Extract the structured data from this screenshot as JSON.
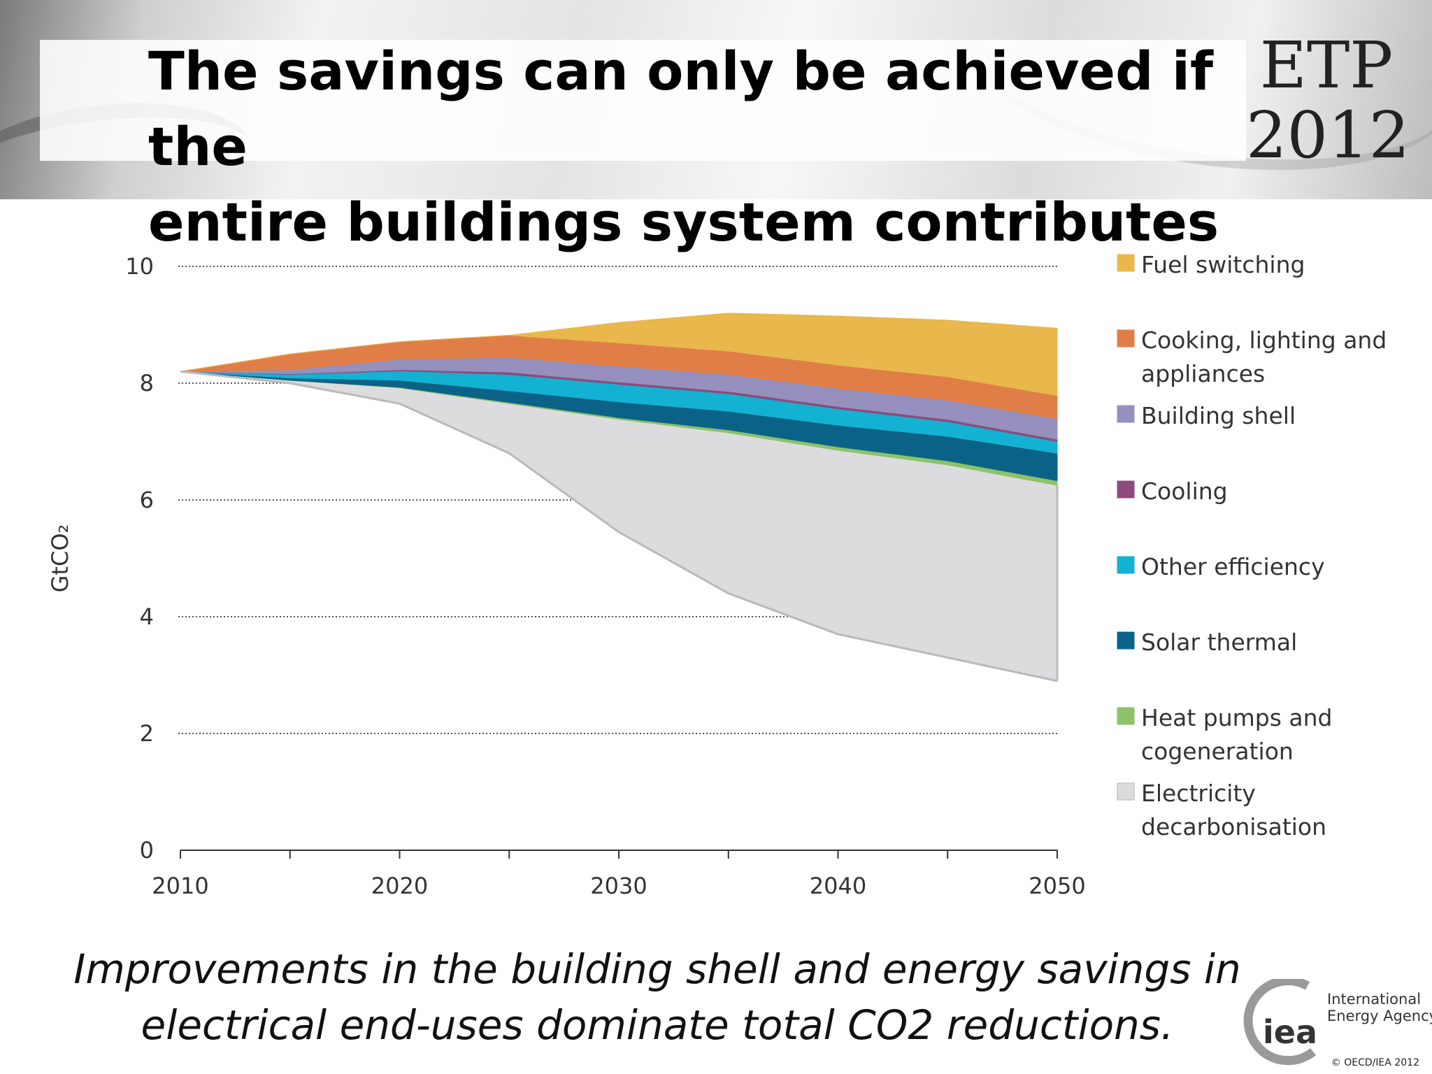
{
  "slide": {
    "title_line1": "The savings can only be achieved if the",
    "title_line2": "entire buildings system contributes",
    "badge_line1": "ETP",
    "badge_line2": "2012",
    "caption_line1": "Improvements in the building shell and energy savings in",
    "caption_line2": "electrical end-uses dominate total CO2 reductions.",
    "logo_text": "iea",
    "logo_org_line1": "International",
    "logo_org_line2": "Energy Agency",
    "copyright": "© OECD/IEA 2012"
  },
  "chart_data": {
    "type": "area",
    "ylabel": "GtCO₂",
    "xlabel": "",
    "title": "",
    "ylim": [
      0,
      10
    ],
    "xlim": [
      2010,
      2050
    ],
    "y_ticks": [
      "0",
      "2",
      "4",
      "6",
      "8",
      "10"
    ],
    "x_ticks": [
      "2010",
      "2020",
      "2030",
      "2040",
      "2050"
    ],
    "grid": true,
    "legend_position": "right",
    "x": [
      2010,
      2015,
      2020,
      2025,
      2030,
      2035,
      2040,
      2045,
      2050
    ],
    "baseline": [
      8.2,
      8.0,
      7.65,
      6.8,
      5.45,
      4.4,
      3.7,
      3.3,
      2.9
    ],
    "series": [
      {
        "name": "Electricity decarbonisation",
        "color": "#dcdcde",
        "values": [
          0.0,
          0.05,
          0.27,
          0.85,
          1.93,
          2.75,
          3.15,
          3.3,
          3.35
        ]
      },
      {
        "name": "Heat pumps and cogeneration",
        "color": "#8dc26a",
        "values": [
          0.0,
          0.0,
          0.01,
          0.02,
          0.03,
          0.05,
          0.06,
          0.07,
          0.08
        ]
      },
      {
        "name": "Solar thermal",
        "color": "#0a6387",
        "values": [
          0.0,
          0.04,
          0.12,
          0.2,
          0.27,
          0.32,
          0.37,
          0.42,
          0.47
        ]
      },
      {
        "name": "Other efficiency",
        "color": "#13b2d3",
        "values": [
          0.0,
          0.06,
          0.16,
          0.28,
          0.3,
          0.3,
          0.28,
          0.25,
          0.2
        ]
      },
      {
        "name": "Cooling",
        "color": "#8e4a7a",
        "values": [
          0.0,
          0.01,
          0.02,
          0.04,
          0.04,
          0.04,
          0.04,
          0.04,
          0.04
        ]
      },
      {
        "name": "Building shell",
        "color": "#9590bd",
        "values": [
          0.0,
          0.07,
          0.18,
          0.25,
          0.27,
          0.29,
          0.31,
          0.33,
          0.35
        ]
      },
      {
        "name": "Cooking, lighting and appliances",
        "color": "#e17e47",
        "values": [
          0.0,
          0.27,
          0.3,
          0.38,
          0.4,
          0.4,
          0.4,
          0.4,
          0.4
        ]
      },
      {
        "name": "Fuel switching",
        "color": "#e8b84d",
        "values": [
          0.0,
          0.0,
          0.0,
          0.0,
          0.35,
          0.65,
          0.84,
          0.97,
          1.15
        ]
      }
    ],
    "legend_order": [
      {
        "label": [
          "Fuel switching"
        ],
        "color": "#e8b84d"
      },
      {
        "label": [
          "Cooking, lighting and",
          "appliances"
        ],
        "color": "#e17e47"
      },
      {
        "label": [
          "Building shell"
        ],
        "color": "#9590bd"
      },
      {
        "label": [
          "Cooling"
        ],
        "color": "#8e4a7a"
      },
      {
        "label": [
          "Other efficiency"
        ],
        "color": "#13b2d3"
      },
      {
        "label": [
          "Solar thermal"
        ],
        "color": "#0a6387"
      },
      {
        "label": [
          "Heat pumps and",
          "cogeneration"
        ],
        "color": "#8dc26a"
      },
      {
        "label": [
          "Electricity",
          "decarbonisation"
        ],
        "color": "#dcdcde"
      }
    ]
  }
}
